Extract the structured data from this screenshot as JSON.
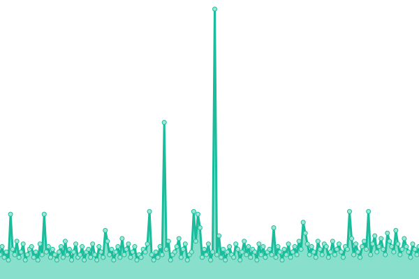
{
  "chart_data": {
    "type": "area",
    "title": "",
    "xlabel": "",
    "ylabel": "",
    "ylim": [
      0,
      100
    ],
    "grid": false,
    "colors": {
      "line": "#1abc9c",
      "fill": "#88e0cc",
      "marker_fill": "#9ee6d2"
    },
    "values": [
      9,
      12,
      8,
      10,
      7,
      24,
      11,
      9,
      14,
      8,
      10,
      13,
      7,
      9,
      11,
      12,
      8,
      10,
      7,
      13,
      9,
      24,
      10,
      12,
      8,
      11,
      9,
      7,
      10,
      12,
      8,
      14,
      9,
      11,
      7,
      10,
      13,
      8,
      9,
      12,
      7,
      10,
      11,
      8,
      13,
      9,
      7,
      12,
      10,
      8,
      18,
      14,
      9,
      11,
      7,
      10,
      12,
      8,
      15,
      9,
      11,
      13,
      8,
      10,
      12,
      7,
      9,
      8,
      11,
      10,
      13,
      25,
      9,
      7,
      10,
      8,
      12,
      9,
      58,
      11,
      14,
      7,
      9,
      10,
      12,
      15,
      8,
      11,
      13,
      7,
      9,
      10,
      25,
      14,
      24,
      19,
      8,
      11,
      9,
      13,
      7,
      10,
      100,
      9,
      16,
      8,
      11,
      7,
      10,
      12,
      9,
      8,
      13,
      11,
      7,
      10,
      14,
      9,
      12,
      8,
      11,
      10,
      7,
      13,
      9,
      12,
      8,
      10,
      11,
      9,
      19,
      8,
      12,
      10,
      7,
      11,
      9,
      13,
      8,
      10,
      12,
      9,
      14,
      11,
      21,
      17,
      13,
      9,
      12,
      10,
      8,
      14,
      11,
      9,
      13,
      12,
      8,
      10,
      14,
      9,
      11,
      13,
      10,
      8,
      12,
      11,
      25,
      15,
      9,
      13,
      10,
      8,
      12,
      14,
      11,
      25,
      9,
      13,
      16,
      10,
      12,
      15,
      11,
      9,
      17,
      14,
      12,
      10,
      18,
      13,
      9,
      11,
      15,
      12,
      10,
      8,
      13,
      11,
      9,
      12
    ]
  }
}
